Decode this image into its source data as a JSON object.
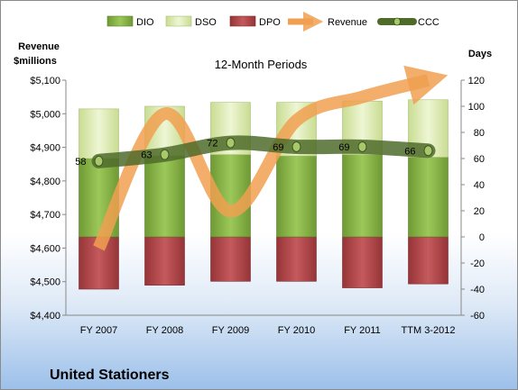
{
  "chart_data": {
    "type": "bar",
    "title": "12-Month Periods",
    "company": "United Stationers",
    "left_axis_label": [
      "Revenue",
      "$millions"
    ],
    "right_axis_label": "Days",
    "categories": [
      "FY 2007",
      "FY 2008",
      "FY 2009",
      "FY 2010",
      "FY 2011",
      "TTM 3-2012"
    ],
    "left_axis": {
      "min": 4400,
      "max": 5100,
      "step": 100,
      "tick_labels": [
        "$4,400",
        "$4,500",
        "$4,600",
        "$4,700",
        "$4,800",
        "$4,900",
        "$5,000",
        "$5,100"
      ]
    },
    "right_axis": {
      "min": -60,
      "max": 120,
      "step": 20,
      "tick_labels": [
        "-60",
        "-40",
        "-20",
        "0",
        "20",
        "40",
        "60",
        "80",
        "100",
        "120"
      ]
    },
    "series": [
      {
        "name": "DIO",
        "axis": "right",
        "kind": "stacked-bar",
        "color": "#8cb84a",
        "values": [
          60,
          62,
          63,
          62,
          63,
          61
        ]
      },
      {
        "name": "DSO",
        "axis": "right",
        "kind": "stacked-bar",
        "color": "#dbe9b0",
        "values": [
          38,
          38,
          40,
          41,
          41,
          44
        ]
      },
      {
        "name": "DPO",
        "axis": "right",
        "kind": "bar-below-zero",
        "color": "#b54a4d",
        "values": [
          -40,
          -37,
          -34,
          -34,
          -39,
          -36
        ]
      },
      {
        "name": "Revenue",
        "axis": "left",
        "kind": "line",
        "color": "#f0a050",
        "values": [
          4600,
          5000,
          4710,
          4980,
          5050,
          5100
        ]
      },
      {
        "name": "CCC",
        "axis": "right",
        "kind": "line",
        "color": "#4f6b2a",
        "values": [
          58,
          63,
          72,
          69,
          69,
          66
        ]
      }
    ],
    "ccc_labels": [
      "58",
      "63",
      "72",
      "69",
      "69",
      "66"
    ],
    "legend": [
      "DIO",
      "DSO",
      "DPO",
      "Revenue",
      "CCC"
    ],
    "legend_position": "top",
    "grid": false
  }
}
